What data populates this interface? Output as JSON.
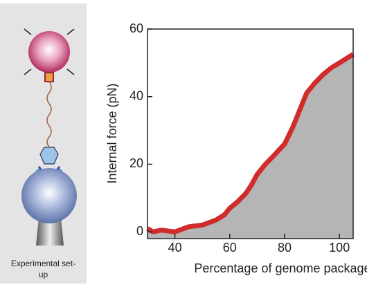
{
  "setup": {
    "caption": "Experimental set-up"
  },
  "chart_data": {
    "type": "area",
    "x_label": "Percentage of genome packaged",
    "y_label": "Internal force (pN)",
    "x": [
      30,
      32,
      35,
      40,
      45,
      50,
      55,
      58,
      60,
      63,
      66,
      68,
      70,
      73,
      76,
      80,
      83,
      86,
      88,
      91,
      94,
      97,
      100,
      103,
      105
    ],
    "values": [
      1,
      0,
      0.5,
      0,
      1.5,
      2,
      3.5,
      5,
      7,
      9,
      11.5,
      14,
      17,
      20,
      22.5,
      26,
      31,
      37,
      41,
      44,
      46.5,
      48.5,
      50,
      51.5,
      52.5
    ],
    "color": "#d12c2c",
    "fill": "#b5b5b5",
    "xlim": [
      30,
      105
    ],
    "xticks": [
      40,
      60,
      80,
      100
    ],
    "ylim": [
      -2,
      60
    ],
    "yticks": [
      0,
      20,
      40,
      60
    ]
  }
}
